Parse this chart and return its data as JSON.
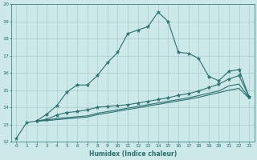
{
  "xlabel": "Humidex (Indice chaleur)",
  "bg_color": "#cce8e8",
  "grid_color": "#aacccc",
  "line_color": "#2a7070",
  "xlim": [
    -0.5,
    23.5
  ],
  "ylim": [
    12,
    20
  ],
  "xticks": [
    0,
    1,
    2,
    3,
    4,
    5,
    6,
    7,
    8,
    9,
    10,
    11,
    12,
    13,
    14,
    15,
    16,
    17,
    18,
    19,
    20,
    21,
    22,
    23
  ],
  "yticks": [
    12,
    13,
    14,
    15,
    16,
    17,
    18,
    19,
    20
  ],
  "line1_x": [
    0,
    1,
    2,
    3,
    4,
    5,
    6,
    7,
    8,
    9,
    10,
    11,
    12,
    13,
    14,
    15,
    16,
    17,
    18,
    19,
    20,
    21,
    22,
    23
  ],
  "line1_y": [
    12.2,
    13.1,
    13.2,
    13.6,
    14.1,
    14.9,
    15.3,
    15.3,
    15.85,
    16.6,
    17.2,
    18.3,
    18.5,
    18.7,
    19.55,
    19.0,
    17.2,
    17.15,
    16.85,
    15.8,
    15.55,
    16.1,
    16.2,
    14.6
  ],
  "line2_x": [
    2,
    3,
    4,
    5,
    6,
    7,
    8,
    9,
    10,
    11,
    12,
    13,
    14,
    15,
    16,
    17,
    18,
    19,
    20,
    21,
    22,
    23
  ],
  "line2_y": [
    13.2,
    13.3,
    13.55,
    13.7,
    13.75,
    13.85,
    14.0,
    14.05,
    14.1,
    14.15,
    14.25,
    14.35,
    14.45,
    14.55,
    14.7,
    14.8,
    14.95,
    15.15,
    15.35,
    15.65,
    15.85,
    14.6
  ],
  "line3_x": [
    2,
    3,
    4,
    5,
    6,
    7,
    8,
    9,
    10,
    11,
    12,
    13,
    14,
    15,
    16,
    17,
    18,
    19,
    20,
    21,
    22,
    23
  ],
  "line3_y": [
    13.2,
    13.25,
    13.35,
    13.4,
    13.45,
    13.5,
    13.65,
    13.75,
    13.85,
    13.95,
    14.05,
    14.15,
    14.25,
    14.35,
    14.45,
    14.55,
    14.68,
    14.82,
    14.95,
    15.25,
    15.35,
    14.55
  ],
  "line4_x": [
    2,
    3,
    4,
    5,
    6,
    7,
    8,
    9,
    10,
    11,
    12,
    13,
    14,
    15,
    16,
    17,
    18,
    19,
    20,
    21,
    22,
    23
  ],
  "line4_y": [
    13.2,
    13.22,
    13.28,
    13.33,
    13.38,
    13.43,
    13.57,
    13.67,
    13.77,
    13.87,
    13.97,
    14.07,
    14.17,
    14.27,
    14.37,
    14.47,
    14.58,
    14.72,
    14.85,
    15.0,
    15.1,
    14.52
  ]
}
